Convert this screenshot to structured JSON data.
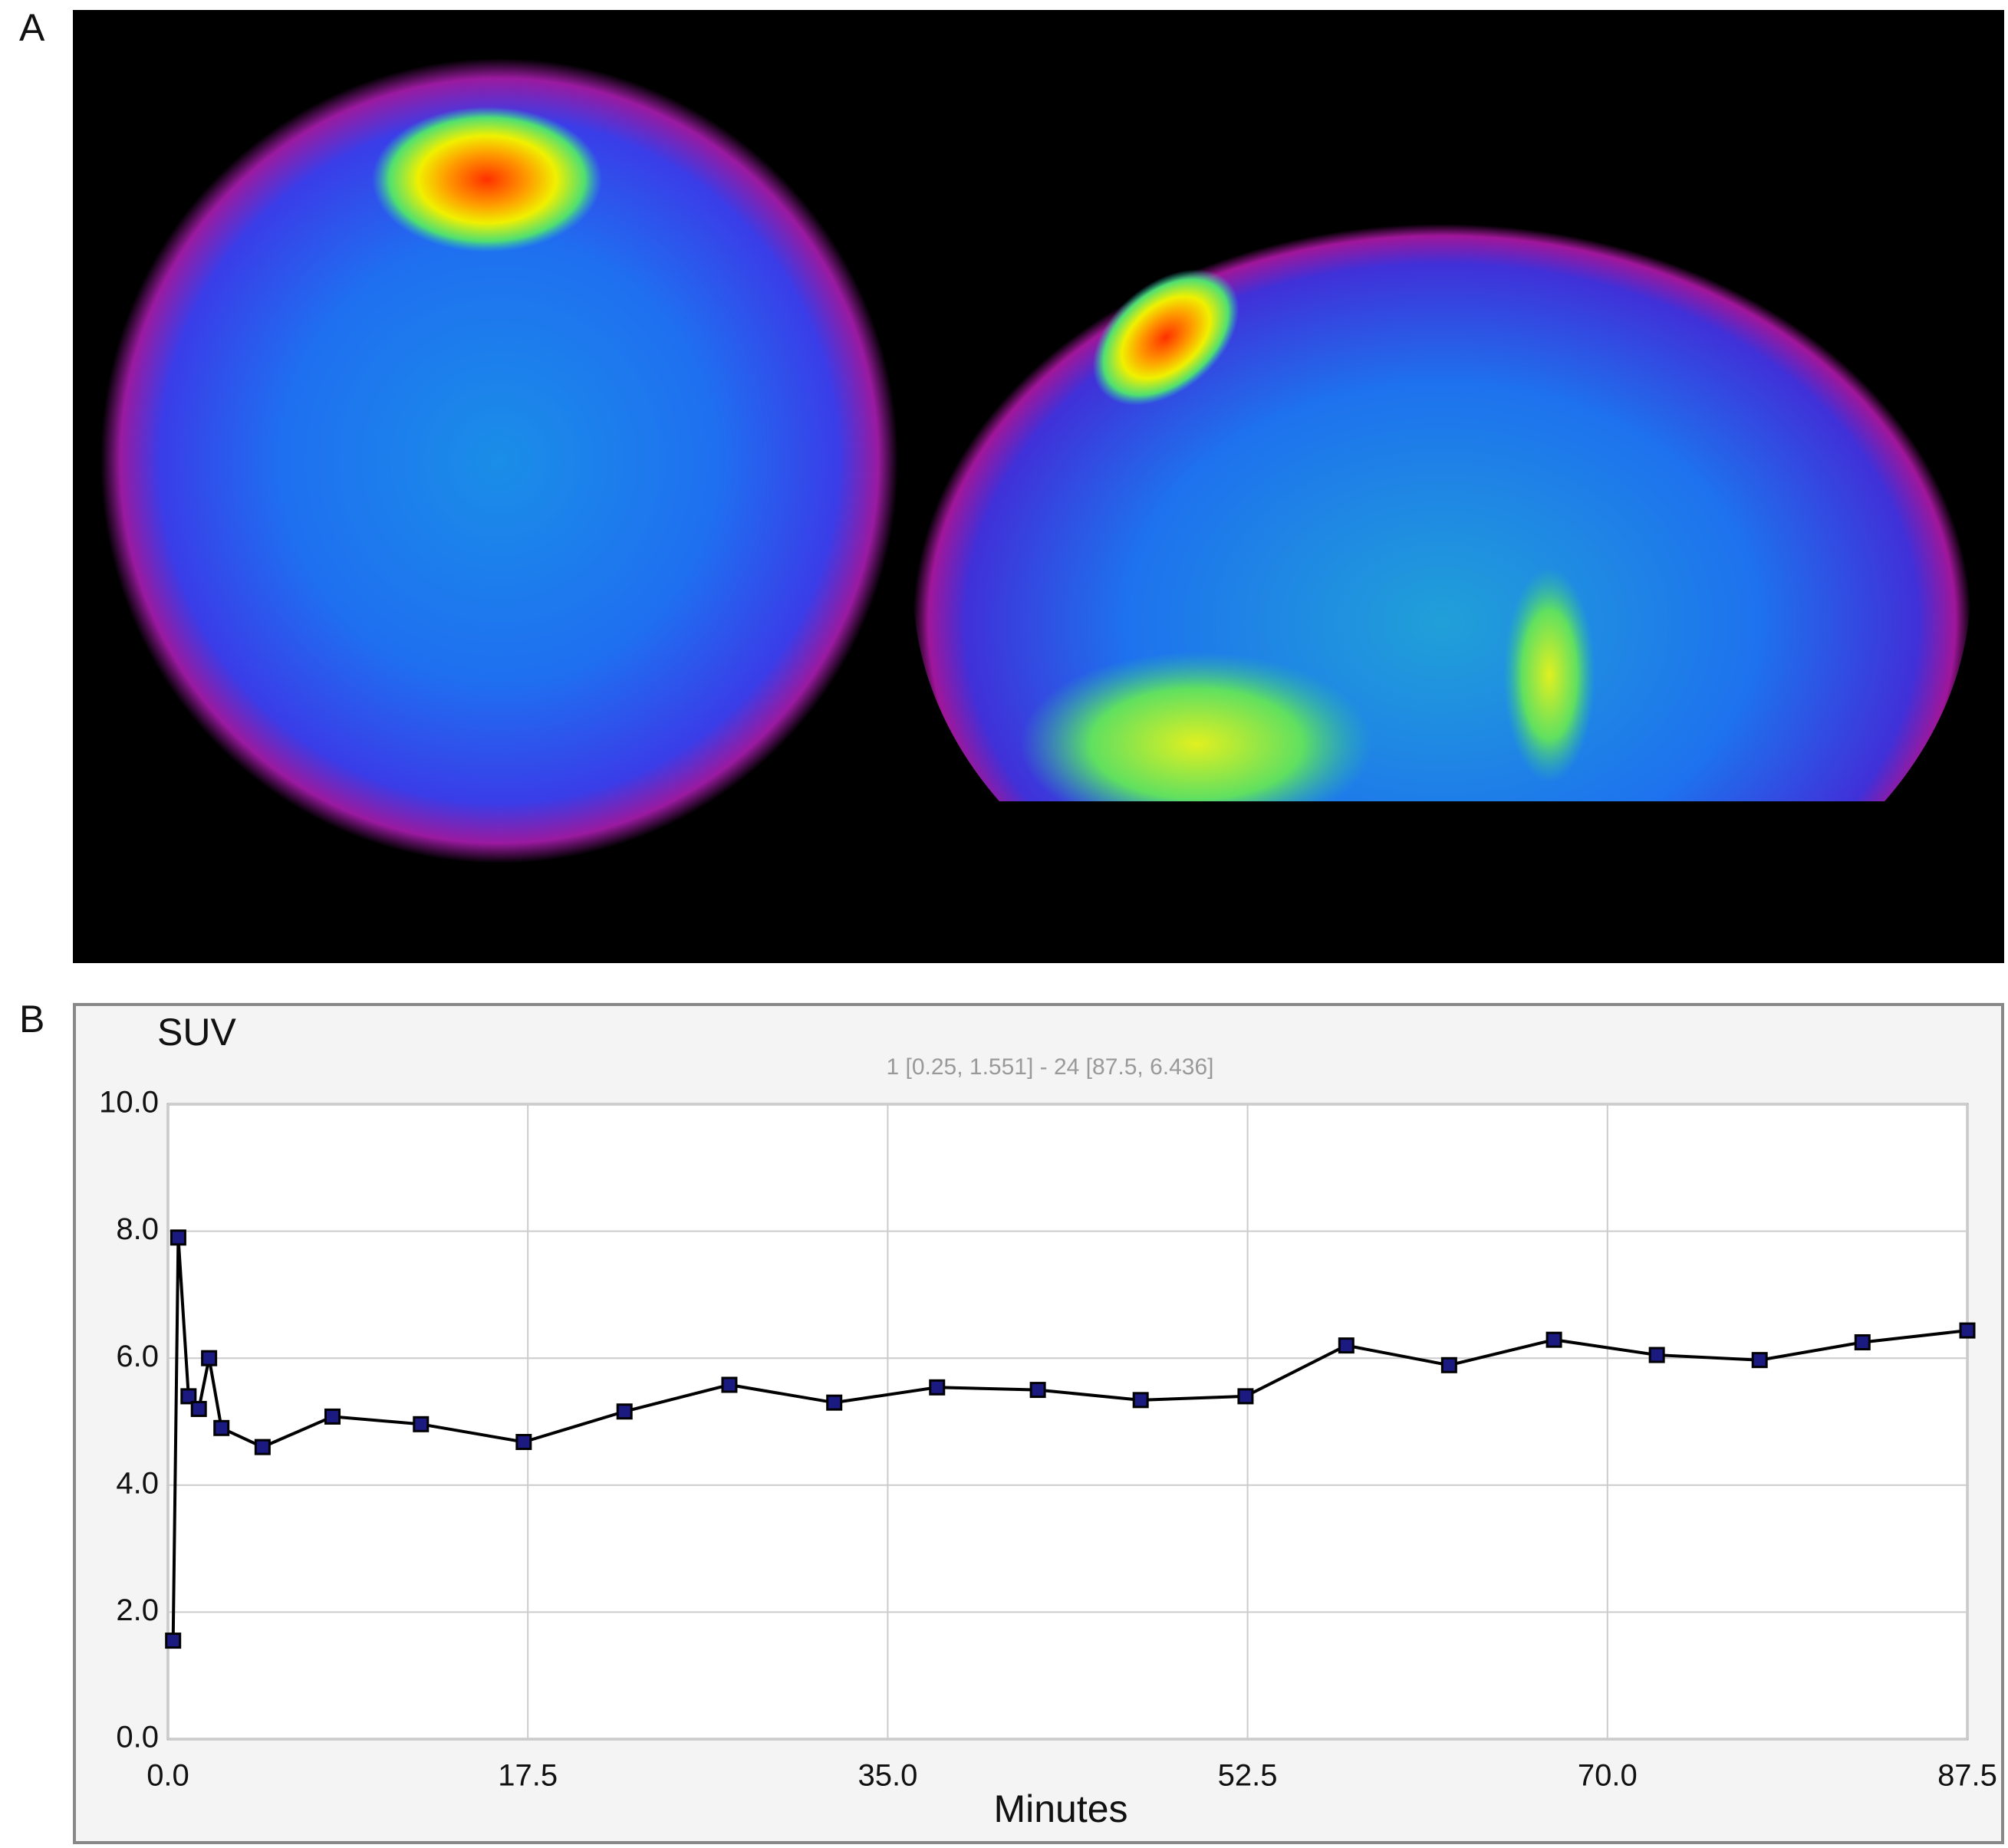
{
  "panel_labels": [
    "A",
    "B"
  ],
  "chart_data": {
    "type": "line",
    "title": "SUV",
    "annotation": "1 [0.25, 1.551] - 24 [87.5, 6.436]",
    "xlabel": "Minutes",
    "x": [
      0.25,
      0.5,
      1.0,
      1.5,
      2.0,
      2.6,
      4.6,
      8.0,
      12.3,
      17.3,
      22.2,
      27.3,
      32.4,
      37.4,
      42.3,
      47.3,
      52.4,
      57.3,
      62.3,
      67.4,
      72.4,
      77.4,
      82.4,
      87.5
    ],
    "series": [
      {
        "color": "#000000",
        "marker_color": "#1a1a80",
        "values": [
          1.551,
          7.9,
          5.4,
          5.2,
          6.0,
          4.9,
          4.6,
          5.08,
          4.96,
          4.68,
          5.16,
          5.58,
          5.3,
          5.54,
          5.5,
          5.34,
          5.4,
          6.2,
          5.89,
          6.29,
          6.05,
          5.97,
          6.25,
          6.436
        ]
      }
    ],
    "xlim": [
      0,
      87.5
    ],
    "xticks": [
      {
        "value": 0,
        "label": "0.0"
      },
      17.5,
      {
        "value": 35,
        "label": "35.0"
      },
      52.5,
      {
        "value": 70,
        "label": "70.0"
      },
      87.5
    ],
    "ylim": [
      0,
      10
    ],
    "yticks": [
      {
        "value": 0,
        "label": "0.0"
      },
      {
        "value": 2,
        "label": "2.0"
      },
      {
        "value": 4,
        "label": "4.0"
      },
      {
        "value": 6,
        "label": "6.0"
      },
      {
        "value": 8,
        "label": "8.0"
      },
      {
        "value": 10,
        "label": "10.0"
      }
    ],
    "grid": true
  }
}
